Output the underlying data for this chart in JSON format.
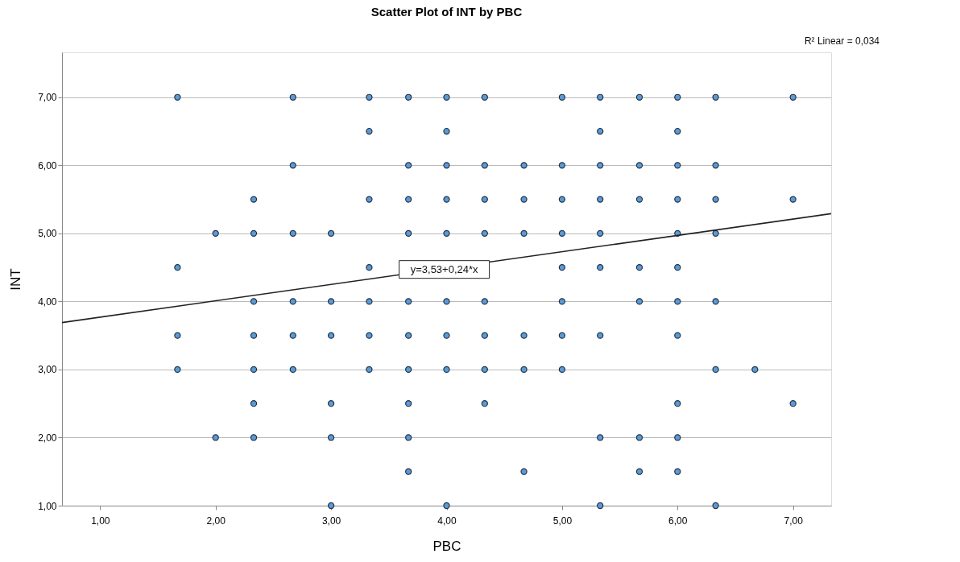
{
  "chart_data": {
    "type": "scatter",
    "title": "Scatter Plot of INT by PBC",
    "xlabel": "PBC",
    "ylabel": "INT",
    "xlim": [
      0.67,
      7.33
    ],
    "ylim": [
      1,
      7.66
    ],
    "xticks": [
      {
        "value": 1,
        "label": "1,00"
      },
      {
        "value": 2,
        "label": "2,00"
      },
      {
        "value": 3,
        "label": "3,00"
      },
      {
        "value": 4,
        "label": "4,00"
      },
      {
        "value": 5,
        "label": "5,00"
      },
      {
        "value": 6,
        "label": "6,00"
      },
      {
        "value": 7,
        "label": "7,00"
      }
    ],
    "yticks": [
      {
        "value": 1,
        "label": "1,00"
      },
      {
        "value": 2,
        "label": "2,00"
      },
      {
        "value": 3,
        "label": "3,00"
      },
      {
        "value": 4,
        "label": "4,00"
      },
      {
        "value": 5,
        "label": "5,00"
      },
      {
        "value": 6,
        "label": "6,00"
      },
      {
        "value": 7,
        "label": "7,00"
      }
    ],
    "grid": "y",
    "series": [
      {
        "marker": "circle",
        "color": "#5b9bd5",
        "x": [
          1.67,
          1.67,
          1.67,
          1.67,
          2,
          2,
          2.33,
          2.33,
          2.33,
          2.33,
          2.33,
          2.33,
          2.33,
          2.67,
          2.67,
          2.67,
          2.67,
          2.67,
          2.67,
          3,
          3,
          3,
          3,
          3,
          3,
          3.33,
          3.33,
          3.33,
          3.33,
          3.33,
          3.33,
          3.33,
          3.67,
          3.67,
          3.67,
          3.67,
          3.67,
          3.67,
          3.67,
          3.67,
          3.67,
          3.67,
          4,
          4,
          4,
          4,
          4,
          4,
          4,
          4,
          4,
          4.33,
          4.33,
          4.33,
          4.33,
          4.33,
          4.33,
          4.33,
          4.33,
          4.67,
          4.67,
          4.67,
          4.67,
          4.67,
          4.67,
          5,
          5,
          5,
          5,
          5,
          5,
          5,
          5,
          5.33,
          5.33,
          5.33,
          5.33,
          5.33,
          5.33,
          5.33,
          5.33,
          5.33,
          5.67,
          5.67,
          5.67,
          5.67,
          5.67,
          5.67,
          5.67,
          6,
          6,
          6,
          6,
          6,
          6,
          6,
          6,
          6,
          6,
          6,
          6.33,
          6.33,
          6.33,
          6.33,
          6.33,
          6.33,
          6.33,
          6.67,
          7,
          7,
          7
        ],
        "values": [
          7,
          4.5,
          3.5,
          3,
          5,
          2,
          5.5,
          5,
          4,
          3.5,
          3,
          2.5,
          2,
          7,
          6,
          5,
          4,
          3.5,
          3,
          5,
          4,
          3.5,
          2.5,
          2,
          1,
          7,
          6.5,
          5.5,
          4.5,
          4,
          3.5,
          3,
          7,
          6,
          5.5,
          5,
          4,
          3.5,
          3,
          2.5,
          2,
          1.5,
          7,
          6.5,
          6,
          5.5,
          5,
          4,
          3.5,
          3,
          1,
          7,
          6,
          5.5,
          5,
          4,
          3.5,
          3,
          2.5,
          6,
          5.5,
          5,
          3.5,
          3,
          1.5,
          7,
          6,
          5.5,
          5,
          4.5,
          4,
          3.5,
          3,
          7,
          6.5,
          6,
          5.5,
          5,
          4.5,
          3.5,
          2,
          1,
          7,
          6,
          5.5,
          4.5,
          4,
          2,
          1.5,
          7,
          6.5,
          6,
          5.5,
          5,
          4.5,
          4,
          3.5,
          2.5,
          2,
          1.5,
          7,
          6,
          5.5,
          5,
          4,
          3,
          1,
          3,
          7,
          5.5,
          2.5
        ]
      },
      {
        "type": "line",
        "color": "#222222",
        "x": [
          0.67,
          7.33
        ],
        "values": [
          3.69,
          5.29
        ]
      }
    ],
    "annotations": [
      {
        "text": "y=3,53+0,24*x",
        "x": 3.98,
        "y": 4.47
      },
      "R² Linear = 0,034"
    ]
  }
}
